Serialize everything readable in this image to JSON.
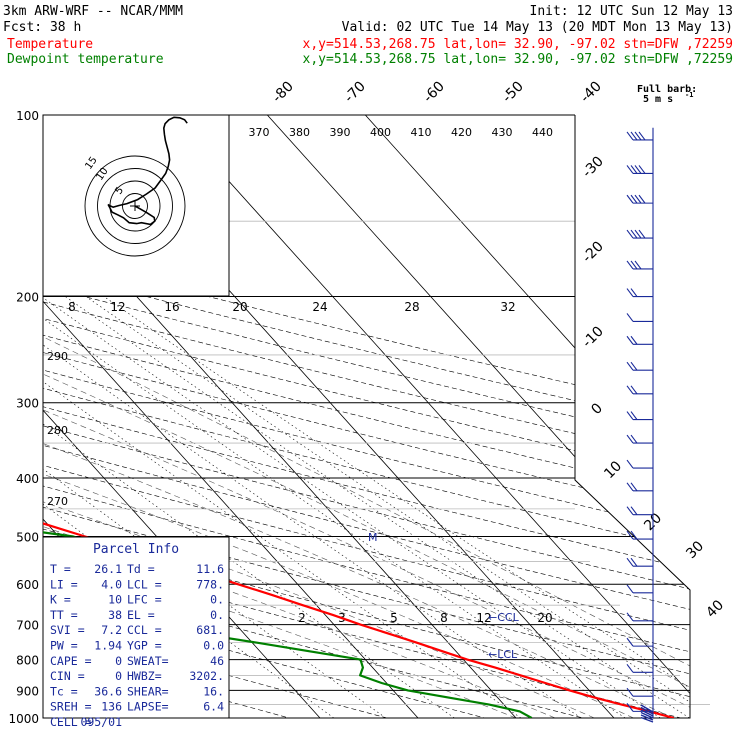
{
  "header": {
    "model": "3km ARW-WRF -- NCAR/MMM",
    "init": "Init: 12 UTC Sun 12 May 13",
    "fcst": "Fcst:   38 h",
    "valid": "Valid: 02 UTC Tue 14 May 13 (20 MDT Mon 13 May 13)"
  },
  "legend": [
    {
      "name": "Temperature",
      "info": "x,y=514.53,268.75   lat,lon= 32.90, -97.02  stn=DFW ,72259",
      "color": "#ff0000"
    },
    {
      "name": "Dewpoint temperature",
      "info": "x,y=514.53,268.75   lat,lon= 32.90, -97.02  stn=DFW ,72259",
      "color": "#008000"
    }
  ],
  "barb_note": {
    "line1": "Full barb:",
    "line2": "5 m s",
    "sup": "-1"
  },
  "kts_label": "kts",
  "parcel_info": {
    "title": "Parcel Info",
    "rows": [
      [
        "T   =",
        "26.1",
        "Td  =",
        "11.6"
      ],
      [
        "LI  =",
        "4.0",
        "LCL =",
        "778."
      ],
      [
        "K   =",
        "10",
        "LFC =",
        "0."
      ],
      [
        "TT  =",
        "38",
        "EL  =",
        "0."
      ],
      [
        "SVI =",
        "7.2",
        "CCL =",
        "681."
      ],
      [
        "PW  =",
        "1.94",
        "YGP =",
        "0.0"
      ],
      [
        "CAPE =",
        "0",
        "SWEAT=",
        "46"
      ],
      [
        "CIN =",
        "0",
        "HWBZ=",
        "3202."
      ],
      [
        "Tc  =",
        "36.6",
        "SHEAR=",
        "16."
      ],
      [
        "SREH =",
        "136",
        "LAPSE=",
        "6.4"
      ],
      [
        "CELL =",
        "095/01",
        "",
        ""
      ]
    ]
  },
  "chart_data": {
    "type": "line",
    "title": "Skew-T log-P diagram",
    "ylabel": "",
    "pressure_ticks": [
      100,
      200,
      300,
      400,
      500,
      600,
      700,
      800,
      900,
      1000
    ],
    "isotherm_labels": [
      "-80",
      "-70",
      "-60",
      "-50",
      "-40",
      "-30",
      "-20",
      "-10",
      "0",
      "10",
      "20",
      "30",
      "40"
    ],
    "theta_labels": [
      "370",
      "380",
      "390",
      "400",
      "410",
      "420",
      "430",
      "440"
    ],
    "theta_left_labels": [
      "290",
      "280",
      "270"
    ],
    "mixing_ratio_top_labels": [
      "8",
      "12",
      "16",
      "20",
      "24",
      "28",
      "32"
    ],
    "mixing_ratio_bottom_labels": [
      "2",
      "3",
      "5",
      "8",
      "12",
      "20"
    ],
    "level_markers": [
      {
        "label": "M",
        "p": 500
      },
      {
        "label": "CCL",
        "p": 681
      },
      {
        "label": "LCL",
        "p": 778
      }
    ],
    "series": [
      {
        "name": "Temperature",
        "color": "#ff0000",
        "p": [
          1000,
          975,
          950,
          925,
          900,
          875,
          850,
          825,
          800,
          775,
          750,
          725,
          700,
          675,
          650,
          625,
          600,
          575,
          550,
          525,
          500,
          475,
          450,
          425,
          400,
          375,
          350,
          325,
          300,
          275,
          250,
          225,
          200,
          175,
          150,
          125,
          100
        ],
        "t": [
          26.1,
          24.2,
          22.0,
          19.9,
          18.0,
          16.2,
          14.4,
          12.5,
          10.4,
          8.6,
          6.8,
          4.8,
          2.7,
          0.8,
          -1.4,
          -3.6,
          -6.1,
          -8.6,
          -11.2,
          -14.2,
          -17.3,
          -20.5,
          -23.8,
          -27.5,
          -31.2,
          -35.4,
          -39.8,
          -44.5,
          -49.0,
          -54.0,
          -58.8,
          -63.6,
          -68.0,
          -70.5,
          -72.5,
          -73.5,
          -73.0
        ]
      },
      {
        "name": "Dewpoint temperature",
        "color": "#008000",
        "p": [
          1000,
          975,
          950,
          925,
          900,
          875,
          850,
          825,
          800,
          775,
          750,
          725,
          700,
          675,
          650,
          625,
          600,
          575,
          550,
          525,
          500,
          475,
          450,
          425,
          400,
          375,
          350,
          325,
          300,
          275,
          250,
          225,
          200,
          175,
          150,
          125,
          100
        ],
        "t": [
          11.6,
          11.0,
          8.5,
          5.0,
          1.5,
          -0.5,
          -2.0,
          -1.0,
          -0.5,
          -5.0,
          -9.5,
          -14.5,
          -18.5,
          -22.0,
          -26.0,
          -28.5,
          -28.0,
          -19.0,
          -13.5,
          -15.5,
          -18.5,
          -27.5,
          -35.0,
          -41.0,
          -46.0,
          -50.0,
          -55.0,
          -59.5,
          -65.0,
          -68.5,
          -73.0,
          -76.0,
          -80.0,
          -84.0,
          -87.5,
          -89.0,
          -90.0
        ]
      }
    ],
    "hodograph": {
      "ring_labels": [
        "15",
        "10",
        "5"
      ],
      "u": [
        0.0,
        1.5,
        3.8,
        6.0,
        6.2,
        4.8,
        2.0,
        0.5,
        -1.8,
        -3.6,
        -5.4,
        -7.2,
        -7.8,
        -8.4,
        -8.0,
        -6.8,
        -5.0,
        -2.5,
        0.8,
        3.6,
        6.3,
        8.0,
        9.6,
        10.4,
        10.8,
        10.6,
        10.1,
        9.5,
        9.2,
        9.0,
        9.4,
        10.6,
        12.2,
        14.0,
        15.5,
        16.3
      ],
      "v": [
        0.0,
        -1.1,
        -2.8,
        -4.7,
        -6.2,
        -7.5,
        -6.8,
        -7.2,
        -6.8,
        -4.8,
        -3.6,
        -2.5,
        -0.8,
        0.6,
        0.2,
        -0.5,
        0.2,
        1.0,
        2.6,
        4.9,
        7.4,
        10.4,
        13.3,
        16.2,
        18.8,
        21.3,
        23.8,
        26.7,
        29.3,
        31.8,
        33.6,
        35.2,
        36.2,
        36.0,
        35.2,
        33.8
      ]
    },
    "wind_barbs": [
      {
        "p": 110,
        "barbs": 4
      },
      {
        "p": 125,
        "barbs": 4
      },
      {
        "p": 140,
        "barbs": 4
      },
      {
        "p": 160,
        "barbs": 4
      },
      {
        "p": 180,
        "barbs": 3
      },
      {
        "p": 200,
        "barbs": 2
      },
      {
        "p": 220,
        "barbs": 1
      },
      {
        "p": 240,
        "barbs": 2
      },
      {
        "p": 265,
        "barbs": 2
      },
      {
        "p": 290,
        "barbs": 2
      },
      {
        "p": 320,
        "barbs": 2
      },
      {
        "p": 350,
        "barbs": 2
      },
      {
        "p": 385,
        "barbs": 1
      },
      {
        "p": 420,
        "barbs": 2
      },
      {
        "p": 460,
        "barbs": 2
      },
      {
        "p": 505,
        "barbs": 2
      },
      {
        "p": 560,
        "barbs": 2
      },
      {
        "p": 620,
        "barbs": 1
      },
      {
        "p": 690,
        "barbs": 1
      },
      {
        "p": 760,
        "barbs": 1
      },
      {
        "p": 840,
        "barbs": 1
      },
      {
        "p": 920,
        "barbs": 1
      },
      {
        "p": 975,
        "barbs": 1
      }
    ]
  }
}
